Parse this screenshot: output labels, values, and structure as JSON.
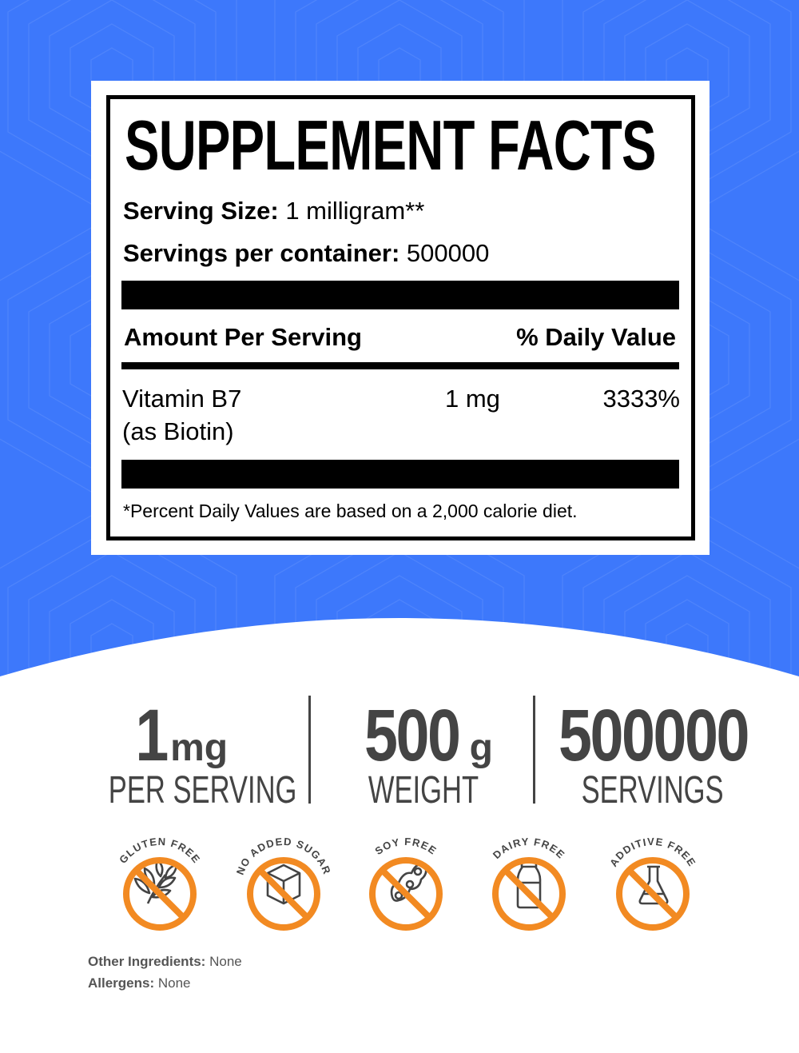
{
  "colors": {
    "background_blue": "#3d78fb",
    "icon_orange": "#f28a22",
    "stat_gray": "#444444"
  },
  "facts": {
    "title": "SUPPLEMENT FACTS",
    "serving_size_label": "Serving Size:",
    "serving_size_value": "1 milligram**",
    "servings_label": "Servings per container:",
    "servings_value": "500000",
    "amount_header": "Amount Per Serving",
    "dv_header": "% Daily Value",
    "nutrients": [
      {
        "name": "Vitamin B7",
        "form": "(as Biotin)",
        "amount": "1 mg",
        "dv": "3333%"
      }
    ],
    "footnote": "*Percent Daily Values are based on a 2,000 calorie diet."
  },
  "stats": [
    {
      "value": "1",
      "unit": "mg",
      "label": "PER SERVING"
    },
    {
      "value": "500",
      "unit": "g",
      "label": "WEIGHT"
    },
    {
      "value": "500000",
      "unit": "",
      "label": "SERVINGS"
    }
  ],
  "badges": [
    {
      "label": "GLUTEN FREE",
      "icon": "wheat-icon"
    },
    {
      "label": "NO ADDED SUGAR",
      "icon": "sugar-cube-icon"
    },
    {
      "label": "SOY FREE",
      "icon": "soybean-icon"
    },
    {
      "label": "DAIRY FREE",
      "icon": "milk-bottle-icon"
    },
    {
      "label": "ADDITIVE FREE",
      "icon": "flask-icon"
    }
  ],
  "other_ingredients": {
    "label": "Other Ingredients:",
    "value": "None"
  },
  "allergens": {
    "label": "Allergens:",
    "value": "None"
  }
}
